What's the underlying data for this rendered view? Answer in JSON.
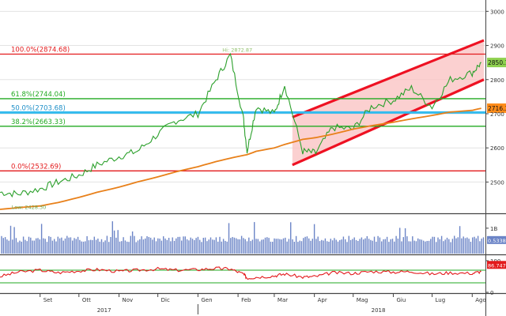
{
  "chart_data": [
    {
      "type": "line",
      "panel": "price",
      "x": [
        "2017-08-01",
        "2017-08-15",
        "2017-09-01",
        "2017-09-15",
        "2017-10-01",
        "2017-10-15",
        "2017-11-01",
        "2017-11-15",
        "2017-12-01",
        "2017-12-15",
        "2018-01-01",
        "2018-01-15",
        "2018-01-26",
        "2018-02-05",
        "2018-02-08",
        "2018-02-15",
        "2018-03-01",
        "2018-03-09",
        "2018-03-23",
        "2018-04-02",
        "2018-04-15",
        "2018-05-01",
        "2018-05-15",
        "2018-06-01",
        "2018-06-15",
        "2018-07-01",
        "2018-07-15",
        "2018-08-01",
        "2018-08-08"
      ],
      "series": [
        {
          "values": [
            2470,
            2465,
            2480,
            2500,
            2520,
            2550,
            2575,
            2590,
            2640,
            2680,
            2700,
            2800,
            2872,
            2690,
            2590,
            2720,
            2700,
            2785,
            2590,
            2585,
            2660,
            2655,
            2720,
            2740,
            2775,
            2720,
            2800,
            2820,
            2850
          ]
        },
        {
          "values": [
            2420,
            2425,
            2430,
            2440,
            2455,
            2470,
            2485,
            2500,
            2515,
            2530,
            2545,
            2560,
            2570,
            2578,
            2580,
            2590,
            2600,
            2610,
            2625,
            2630,
            2640,
            2655,
            2665,
            2675,
            2685,
            2695,
            2705,
            2710,
            2716
          ]
        }
      ],
      "channel": {
        "upper": [
          [
            "2018-03-15",
            2690
          ],
          [
            "2018-08-10",
            2915
          ]
        ],
        "lower": [
          [
            "2018-03-15",
            2550
          ],
          [
            "2018-08-10",
            2800
          ]
        ]
      },
      "fib_levels": [
        {
          "label": "100.0%(2874.68)",
          "value": 2874.68,
          "color": "#e31a1c"
        },
        {
          "label": "61.8%(2744.04)",
          "value": 2744.04,
          "color": "#22aa22"
        },
        {
          "label": "50.0%(2703.68)",
          "value": 2703.68,
          "color": "#33bbee"
        },
        {
          "label": "38.2%(2663.33)",
          "value": 2663.33,
          "color": "#22aa22"
        },
        {
          "label": "0.0%(2532.69)",
          "value": 2532.69,
          "color": "#e31a1c"
        }
      ],
      "annotations": [
        {
          "text": "Hi: 2872.87",
          "x": "2018-01-26",
          "y": 2872.87
        },
        {
          "text": "Low: 2428.30",
          "x": "2017-08-10",
          "y": 2428.3
        }
      ],
      "yticks": [
        2500,
        2600,
        2700,
        2800,
        2900,
        3000
      ],
      "ylim": [
        2420,
        3010
      ],
      "last_value_badges": [
        {
          "text": "2850.13",
          "value": 2850.13,
          "color": "#8fd14f"
        },
        {
          "text": "2716.33",
          "value": 2716.33,
          "color": "#ff8c1a"
        }
      ]
    },
    {
      "type": "bar",
      "panel": "volume",
      "yticks": [
        {
          "value": 1,
          "label": "1B"
        }
      ],
      "ylim": [
        0,
        1.4
      ],
      "last_value_badges": [
        {
          "text": "0.5338",
          "value": 0.5338,
          "color": "#6c85c7"
        }
      ]
    },
    {
      "type": "line",
      "panel": "rsi",
      "yticks": [
        0,
        100
      ],
      "ylim": [
        0,
        110
      ],
      "reference_lines": [
        70,
        30
      ],
      "last_value_badges": [
        {
          "text": "86.7470",
          "value": 86.747,
          "color": "#e31a1c"
        }
      ]
    }
  ],
  "x_axis": {
    "months": [
      "Set",
      "Ott",
      "Nov",
      "Dic",
      "Gen",
      "Feb",
      "Mar",
      "Apr",
      "Mag",
      "Giu",
      "Lug",
      "Ago"
    ],
    "years": [
      "2017",
      "2018"
    ]
  },
  "colors": {
    "price": "#2ca02c",
    "ma": "#e8801a",
    "channel": "#ee1122",
    "channel_fill": "#f9c0c0",
    "volume": "#6c85c7",
    "rsi": "#e31a1c",
    "rsi_ref": "#22aa22"
  }
}
